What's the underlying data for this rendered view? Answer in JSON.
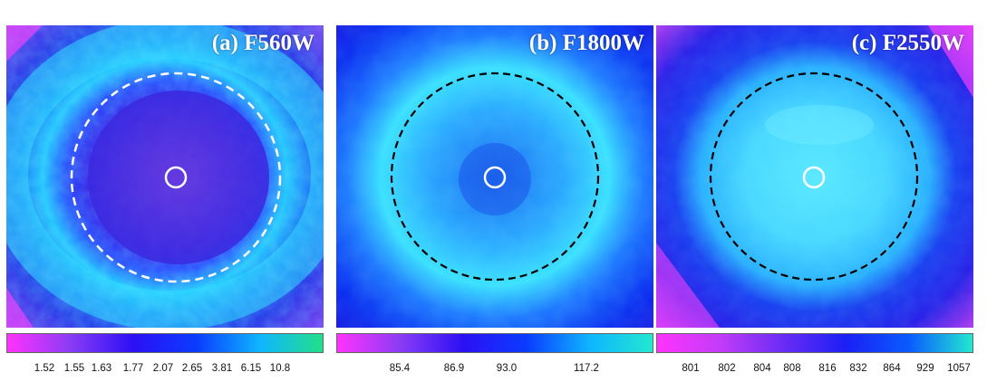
{
  "panels": [
    {
      "title": "(a) F560W",
      "ticks": [
        "1.52",
        "1.55",
        "1.63",
        "1.77",
        "2.07",
        "2.65",
        "3.81",
        "6.15",
        "10.8"
      ],
      "colormap": [
        "#ff33ff",
        "#8a3cf5",
        "#2c10f5",
        "#0a3cff",
        "#0fb5ff",
        "#22e08a"
      ]
    },
    {
      "title": "(b) F1800W",
      "ticks": [
        "85.4",
        "86.9",
        "93.0",
        "117.2"
      ],
      "colormap": [
        "#ff33ff",
        "#8a3cf5",
        "#2c10f5",
        "#0a3cff",
        "#0fb5ff",
        "#22e8d0"
      ]
    },
    {
      "title": "(c) F2550W",
      "ticks": [
        "801",
        "802",
        "804",
        "808",
        "816",
        "832",
        "864",
        "929",
        "1057"
      ],
      "colormap": [
        "#ff33ff",
        "#c23cf8",
        "#6a2cf5",
        "#1a20f5",
        "#0a5cff",
        "#22e8d0"
      ]
    }
  ]
}
